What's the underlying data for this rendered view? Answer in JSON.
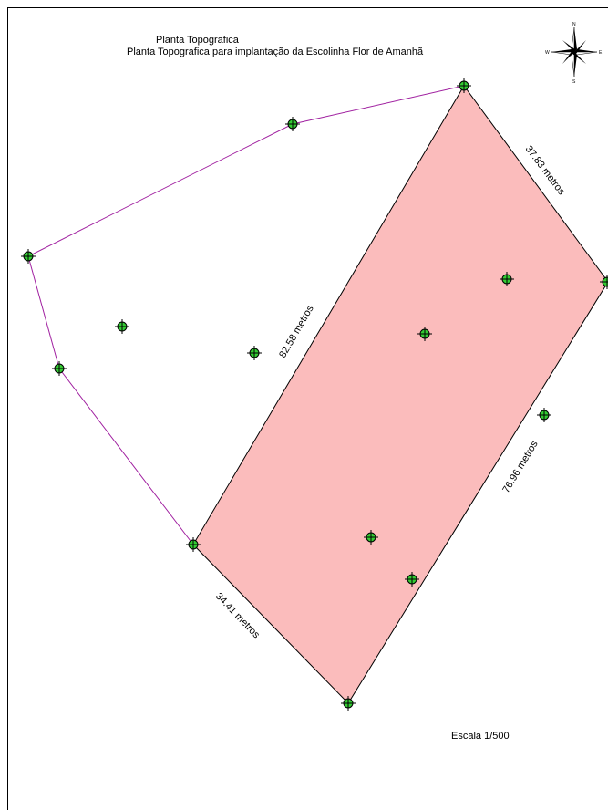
{
  "title": "Planta Topografica",
  "subtitle": "Planta Topografica para implantação da Escolinha Flor de Amanhã",
  "scale_label": "Escala 1/500",
  "compass": {
    "n": "N",
    "s": "S",
    "e": "E",
    "w": "W"
  },
  "dimensions": {
    "top_right": "37.83 metros",
    "diagonal": "82.58 metros",
    "right": "76.96 metros",
    "bottom_left": "34.41 metros"
  },
  "colors": {
    "site_fill": "#fbbcbc",
    "site_border": "#000000",
    "boundary_line": "#a020a0",
    "point_fill": "#33cc33",
    "point_outline": "#000000"
  }
}
